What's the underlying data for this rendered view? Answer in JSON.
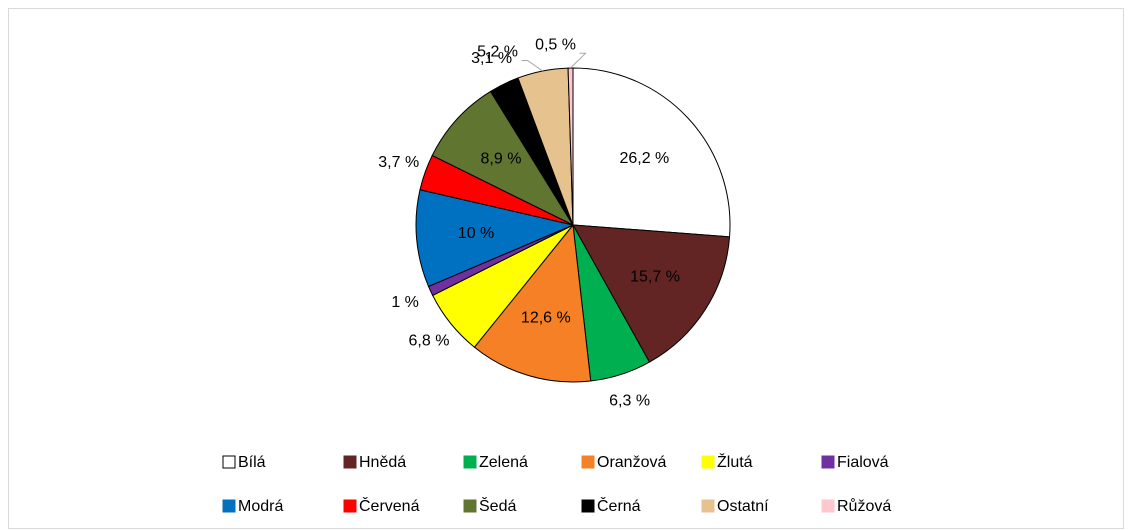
{
  "chart_data": {
    "type": "pie",
    "categories": [
      "Bílá",
      "Hnědá",
      "Zelená",
      "Oranžová",
      "Žlutá",
      "Fialová",
      "Modrá",
      "Červená",
      "Šedá",
      "Černá",
      "Ostatní",
      "Růžová"
    ],
    "values": [
      26.2,
      15.7,
      6.3,
      12.6,
      6.8,
      1,
      10,
      3.7,
      8.9,
      3.1,
      5.2,
      0.5
    ],
    "value_labels": [
      "26,2 %",
      "15,7 %",
      "6,3 %",
      "12,6 %",
      "6,8 %",
      "1 %",
      "10 %",
      "3,7 %",
      "8,9 %",
      "3,1 %",
      "5,2 %",
      "0,5 %"
    ],
    "colors": [
      "#ffffff",
      "#632523",
      "#00b050",
      "#f68026",
      "#ffff00",
      "#7030a0",
      "#0070c0",
      "#ff0000",
      "#5f7530",
      "#000000",
      "#e6c28f",
      "#ffc7ce"
    ],
    "legend": "bottom"
  }
}
